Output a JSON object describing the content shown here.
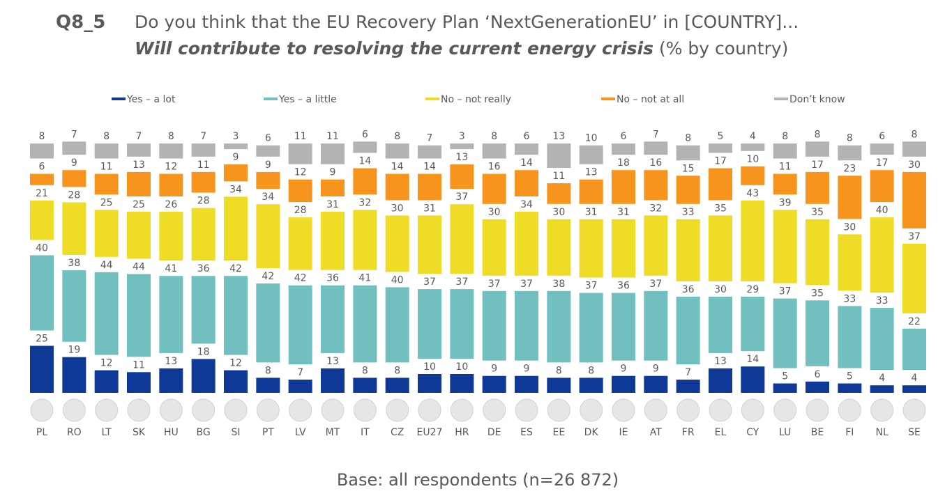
{
  "chart_data": {
    "type": "stacked_bar",
    "title": "Q8_5",
    "question": "Do you think that the EU Recovery Plan ‘NextGenerationEU’ in [COUNTRY]...",
    "subtitle_emphasis": "Will contribute to resolving the current energy crisis",
    "subtitle_rest": "(% by country)",
    "footnote": "Base: all respondents (n=26 872)",
    "categories": [
      "PL",
      "RO",
      "LT",
      "SK",
      "HU",
      "BG",
      "SI",
      "PT",
      "LV",
      "MT",
      "IT",
      "CZ",
      "EU27",
      "HR",
      "DE",
      "ES",
      "EE",
      "DK",
      "IE",
      "AT",
      "FR",
      "EL",
      "CY",
      "LU",
      "BE",
      "FI",
      "NL",
      "SE"
    ],
    "series": [
      {
        "name": "Yes – a lot",
        "color": "#0f3996",
        "values": [
          25,
          19,
          12,
          11,
          13,
          18,
          12,
          8,
          7,
          13,
          8,
          8,
          10,
          10,
          9,
          9,
          8,
          8,
          9,
          9,
          7,
          13,
          14,
          5,
          6,
          5,
          4,
          4
        ]
      },
      {
        "name": "Yes – a little",
        "color": "#72bfc0",
        "values": [
          40,
          38,
          44,
          44,
          41,
          36,
          42,
          42,
          42,
          36,
          41,
          40,
          37,
          37,
          37,
          37,
          38,
          37,
          36,
          37,
          36,
          30,
          29,
          37,
          35,
          33,
          33,
          22
        ]
      },
      {
        "name": "No – not really",
        "color": "#eedc26",
        "values": [
          21,
          28,
          25,
          25,
          26,
          28,
          34,
          34,
          28,
          31,
          32,
          30,
          31,
          37,
          30,
          34,
          30,
          31,
          31,
          32,
          33,
          35,
          43,
          39,
          35,
          30,
          40,
          37
        ]
      },
      {
        "name": "No – not at all",
        "color": "#f7941d",
        "values": [
          6,
          9,
          11,
          13,
          12,
          11,
          9,
          9,
          12,
          9,
          14,
          14,
          14,
          13,
          16,
          14,
          11,
          13,
          18,
          16,
          15,
          17,
          10,
          11,
          17,
          23,
          17,
          30
        ]
      },
      {
        "name": "Don’t know",
        "color": "#b3b3b3",
        "values": [
          8,
          7,
          8,
          7,
          8,
          7,
          3,
          6,
          11,
          11,
          6,
          8,
          7,
          3,
          8,
          6,
          13,
          10,
          6,
          7,
          8,
          5,
          4,
          8,
          8,
          8,
          6,
          8
        ]
      }
    ]
  }
}
